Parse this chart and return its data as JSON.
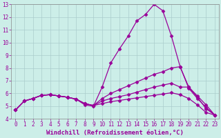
{
  "xlabel": "Windchill (Refroidissement éolien,°C)",
  "ylabel": "",
  "bg_color": "#cceee8",
  "grid_color": "#aacccc",
  "line_color": "#990099",
  "xlim": [
    -0.5,
    23.5
  ],
  "ylim": [
    4,
    13
  ],
  "xticks": [
    0,
    1,
    2,
    3,
    4,
    5,
    6,
    7,
    8,
    9,
    10,
    11,
    12,
    13,
    14,
    15,
    16,
    17,
    18,
    19,
    20,
    21,
    22,
    23
  ],
  "yticks": [
    4,
    5,
    6,
    7,
    8,
    9,
    10,
    11,
    12,
    13
  ],
  "curves": [
    {
      "x": [
        0,
        1,
        2,
        3,
        4,
        5,
        6,
        7,
        8,
        9,
        10,
        11,
        12,
        13,
        14,
        15,
        16,
        17,
        18,
        19,
        20,
        21,
        22,
        23
      ],
      "y": [
        4.7,
        5.4,
        5.6,
        5.85,
        5.9,
        5.8,
        5.7,
        5.55,
        5.1,
        5.0,
        6.5,
        8.4,
        9.5,
        10.5,
        11.7,
        12.2,
        13.0,
        12.5,
        10.5,
        8.1,
        6.5,
        5.8,
        5.1,
        4.3
      ]
    },
    {
      "x": [
        0,
        1,
        2,
        3,
        4,
        5,
        6,
        7,
        8,
        9,
        10,
        11,
        12,
        13,
        14,
        15,
        16,
        17,
        18,
        19,
        20,
        21,
        22,
        23
      ],
      "y": [
        4.7,
        5.4,
        5.6,
        5.85,
        5.9,
        5.8,
        5.7,
        5.55,
        5.2,
        5.05,
        5.6,
        6.0,
        6.3,
        6.6,
        6.9,
        7.2,
        7.5,
        7.7,
        8.0,
        8.1,
        6.4,
        5.6,
        4.9,
        4.3
      ]
    },
    {
      "x": [
        0,
        1,
        2,
        3,
        4,
        5,
        6,
        7,
        8,
        9,
        10,
        11,
        12,
        13,
        14,
        15,
        16,
        17,
        18,
        19,
        20,
        21,
        22,
        23
      ],
      "y": [
        4.7,
        5.4,
        5.6,
        5.85,
        5.9,
        5.8,
        5.7,
        5.55,
        5.2,
        5.05,
        5.4,
        5.6,
        5.75,
        5.9,
        6.1,
        6.3,
        6.5,
        6.65,
        6.8,
        6.5,
        6.5,
        5.7,
        4.8,
        4.3
      ]
    },
    {
      "x": [
        0,
        1,
        2,
        3,
        4,
        5,
        6,
        7,
        8,
        9,
        10,
        11,
        12,
        13,
        14,
        15,
        16,
        17,
        18,
        19,
        20,
        21,
        22,
        23
      ],
      "y": [
        4.7,
        5.4,
        5.6,
        5.85,
        5.9,
        5.8,
        5.7,
        5.55,
        5.2,
        5.05,
        5.2,
        5.35,
        5.45,
        5.55,
        5.65,
        5.75,
        5.85,
        5.95,
        6.05,
        5.9,
        5.6,
        5.1,
        4.5,
        4.3
      ]
    }
  ],
  "marker": "D",
  "markersize": 2.5,
  "linewidth": 0.9,
  "tick_fontsize": 5.5,
  "xlabel_fontsize": 6.5
}
